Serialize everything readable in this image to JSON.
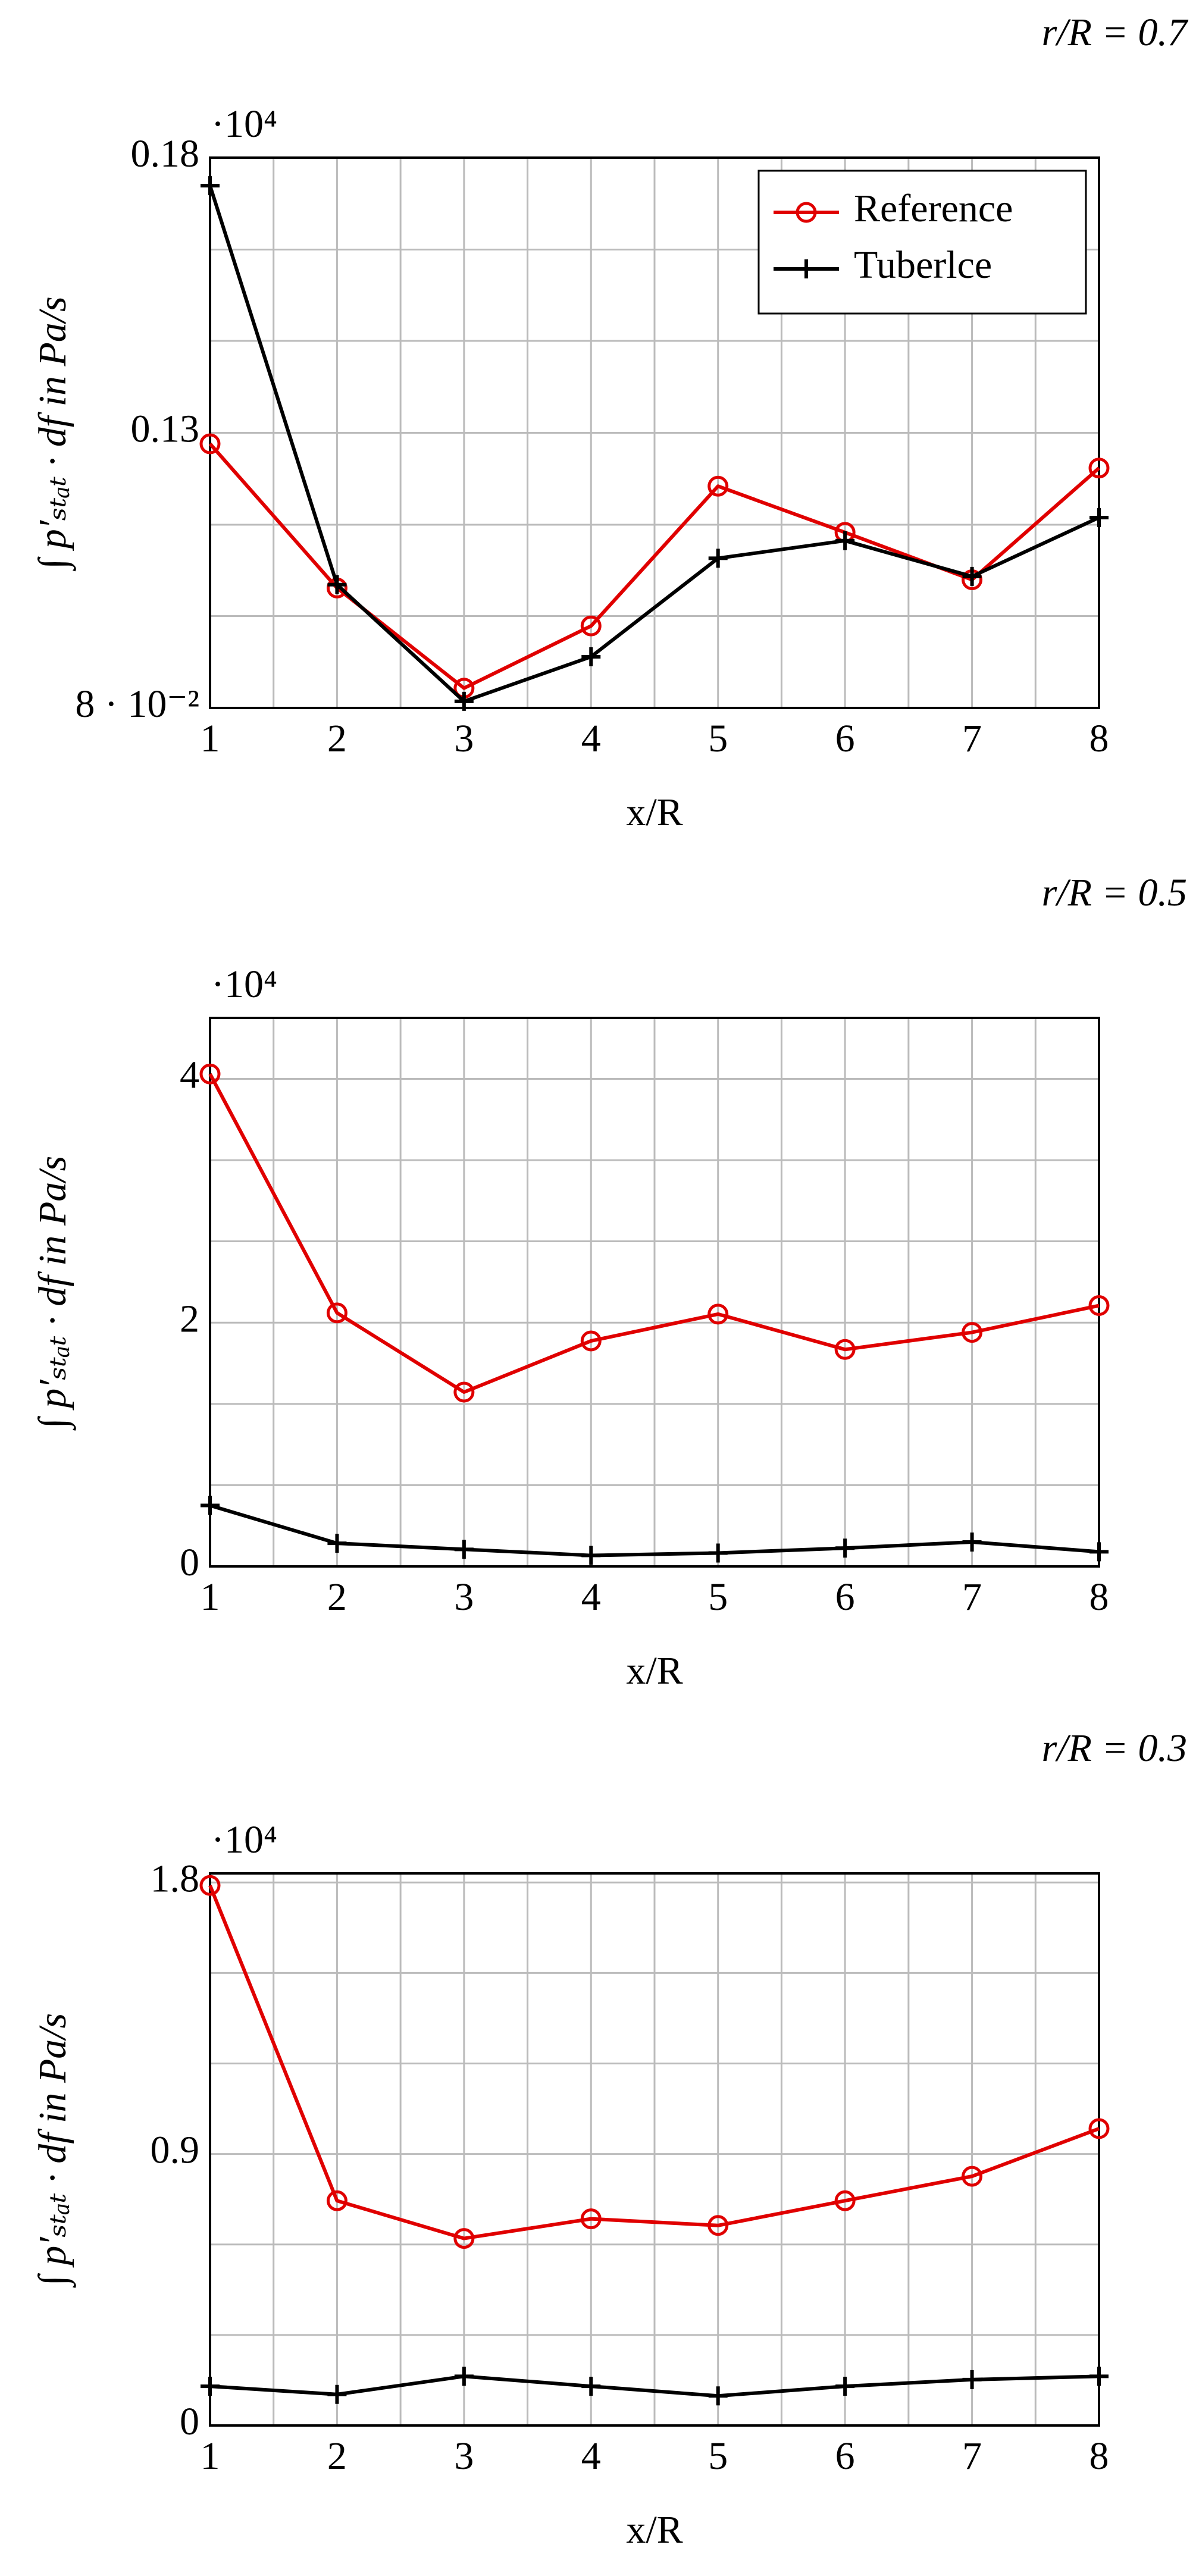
{
  "chart_data": [
    {
      "type": "line",
      "title": "r/R = 0.7",
      "xlabel": "x/R",
      "ylabel": "∫ p′ₛₜₐₜ · df in Pa/s",
      "axis_multiplier": "·10⁴",
      "x": [
        1,
        2,
        3,
        4,
        5,
        6,
        7,
        8
      ],
      "xlim": [
        1,
        8
      ],
      "xticks": [
        1,
        2,
        3,
        4,
        5,
        6,
        7,
        8
      ],
      "ylim": [
        0.08,
        0.18
      ],
      "yticks": [
        {
          "value": 0.08,
          "label": "8 · 10⁻²"
        },
        0.13,
        0.18
      ],
      "x_minor_grid": [
        1.5,
        2.5,
        3.5,
        4.5,
        5.5,
        6.5,
        7.5
      ],
      "y_minor_grid": [
        0.0967,
        0.1133,
        0.1467,
        0.1633
      ],
      "grid": true,
      "legend": "upper right",
      "series": [
        {
          "name": "Reference",
          "color": "#e00000",
          "marker": "circle",
          "values": [
            0.128,
            0.1018,
            0.0836,
            0.0949,
            0.1203,
            0.1119,
            0.1033,
            0.1236
          ]
        },
        {
          "name": "Tuberlce",
          "color": "#000000",
          "marker": "plus",
          "values": [
            0.1749,
            0.1024,
            0.0812,
            0.0893,
            0.1072,
            0.1104,
            0.1039,
            0.1146
          ]
        }
      ]
    },
    {
      "type": "line",
      "title": "r/R = 0.5",
      "xlabel": "x/R",
      "ylabel": "∫ p′ₛₜₐₜ · df in Pa/s",
      "axis_multiplier": "·10⁴",
      "x": [
        1,
        2,
        3,
        4,
        5,
        6,
        7,
        8
      ],
      "xlim": [
        1,
        8
      ],
      "xticks": [
        1,
        2,
        3,
        4,
        5,
        6,
        7,
        8
      ],
      "ylim": [
        0,
        4.5
      ],
      "yticks": [
        0,
        2,
        4
      ],
      "x_minor_grid": [
        1.5,
        2.5,
        3.5,
        4.5,
        5.5,
        6.5,
        7.5
      ],
      "y_minor_grid": [
        0.667,
        1.333,
        2.667,
        3.333
      ],
      "grid": true,
      "series": [
        {
          "color": "#e00000",
          "marker": "circle",
          "values": [
            4.04,
            2.08,
            1.43,
            1.85,
            2.07,
            1.78,
            1.92,
            2.14
          ]
        },
        {
          "color": "#000000",
          "marker": "plus",
          "values": [
            0.5,
            0.19,
            0.14,
            0.09,
            0.11,
            0.15,
            0.2,
            0.12
          ]
        }
      ]
    },
    {
      "type": "line",
      "title": "r/R = 0.3",
      "xlabel": "x/R",
      "ylabel": "∫ p′ₛₜₐₜ · df in Pa/s",
      "axis_multiplier": "·10⁴",
      "x": [
        1,
        2,
        3,
        4,
        5,
        6,
        7,
        8
      ],
      "xlim": [
        1,
        8
      ],
      "xticks": [
        1,
        2,
        3,
        4,
        5,
        6,
        7,
        8
      ],
      "ylim": [
        0,
        1.83
      ],
      "yticks": [
        0,
        0.9,
        1.8
      ],
      "x_minor_grid": [
        1.5,
        2.5,
        3.5,
        4.5,
        5.5,
        6.5,
        7.5
      ],
      "y_minor_grid": [
        0.3,
        0.6,
        1.2,
        1.5
      ],
      "grid": true,
      "series": [
        {
          "color": "#e00000",
          "marker": "circle",
          "values": [
            1.79,
            0.745,
            0.62,
            0.685,
            0.663,
            0.745,
            0.826,
            0.984
          ]
        },
        {
          "color": "#000000",
          "marker": "plus",
          "values": [
            0.13,
            0.103,
            0.163,
            0.13,
            0.098,
            0.13,
            0.152,
            0.163
          ]
        }
      ]
    }
  ]
}
